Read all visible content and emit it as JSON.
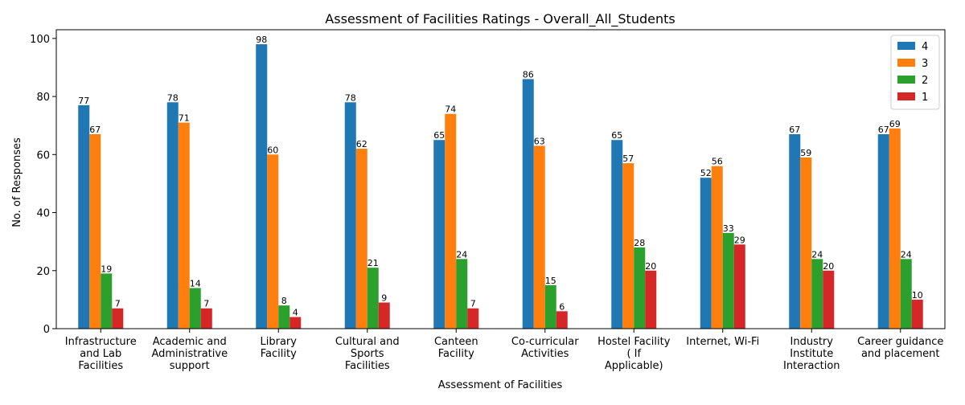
{
  "chart_data": {
    "type": "bar",
    "title": "Assessment of Facilities Ratings - Overall_All_Students",
    "xlabel": "Assessment of Facilities",
    "ylabel": "No. of Responses",
    "ylim": [
      0,
      103
    ],
    "yticks": [
      0,
      20,
      40,
      60,
      80,
      100
    ],
    "grid": false,
    "legend_position": "top-right",
    "categories": [
      [
        "Infrastructure",
        "and Lab",
        "Facilities"
      ],
      [
        "Academic and",
        "Administrative",
        "support"
      ],
      [
        "Library",
        "Facility"
      ],
      [
        "Cultural and",
        "Sports",
        "Facilities"
      ],
      [
        "Canteen",
        "Facility"
      ],
      [
        "Co-curricular",
        "Activities"
      ],
      [
        "Hostel Facility",
        "( If",
        "Applicable)"
      ],
      [
        "Internet, Wi-Fi"
      ],
      [
        "Industry",
        "Institute",
        "Interaction"
      ],
      [
        "Career guidance",
        "and placement"
      ]
    ],
    "series": [
      {
        "name": "4",
        "color": "#1f77b4",
        "values": [
          77,
          78,
          98,
          78,
          65,
          86,
          65,
          52,
          67,
          67
        ]
      },
      {
        "name": "3",
        "color": "#ff7f0e",
        "values": [
          67,
          71,
          60,
          62,
          74,
          63,
          57,
          56,
          59,
          69
        ]
      },
      {
        "name": "2",
        "color": "#2ca02c",
        "values": [
          19,
          14,
          8,
          21,
          24,
          15,
          28,
          33,
          24,
          24
        ]
      },
      {
        "name": "1",
        "color": "#d62728",
        "values": [
          7,
          7,
          4,
          9,
          7,
          6,
          20,
          29,
          20,
          10
        ]
      }
    ]
  }
}
